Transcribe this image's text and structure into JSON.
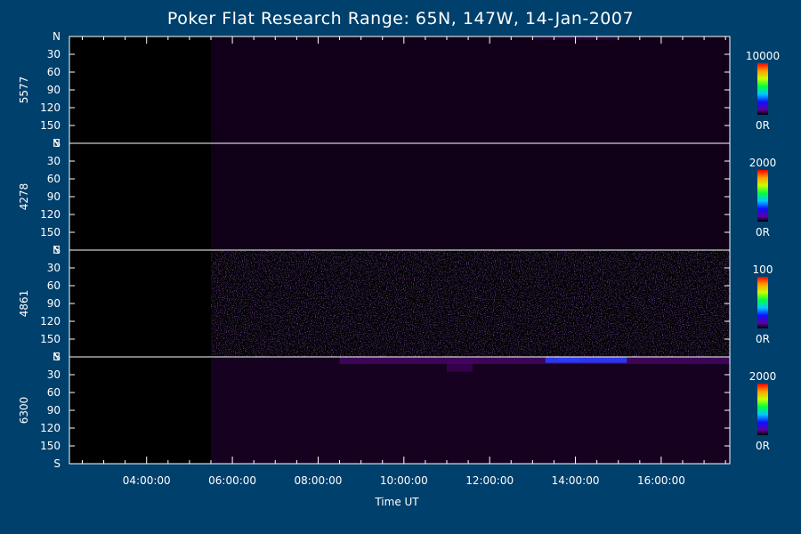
{
  "title": "Poker Flat Research Range: 65N, 147W, 14-Jan-2007",
  "chart_data": {
    "type": "heatmap",
    "title": "Poker Flat Research Range: 65N, 147W, 14-Jan-2007",
    "xlabel": "Time UT",
    "x_ticks": [
      "04:00:00",
      "06:00:00",
      "08:00:00",
      "10:00:00",
      "12:00:00",
      "14:00:00",
      "16:00:00"
    ],
    "xlim_hours": [
      2.2,
      17.6
    ],
    "y_ticks": [
      "N",
      "30",
      "60",
      "90",
      "120",
      "150",
      "S"
    ],
    "ylim_deg": [
      0,
      180
    ],
    "colorbar": "rainbow",
    "panels": [
      {
        "name": "5577",
        "cbar_max": "10000",
        "cbar_min": "0R",
        "features": [
          {
            "kind": "band",
            "t_start": 5.5,
            "t_end": 17.6,
            "deg_start": 0,
            "deg_end": 180,
            "intensity": 0.04
          },
          {
            "kind": "band",
            "t_start": 13.0,
            "t_end": 15.0,
            "deg_start": 0,
            "deg_end": 6,
            "intensity": 0.12
          }
        ]
      },
      {
        "name": "4278",
        "cbar_max": "2000",
        "cbar_min": "0R",
        "features": [
          {
            "kind": "band",
            "t_start": 5.5,
            "t_end": 17.6,
            "deg_start": 0,
            "deg_end": 180,
            "intensity": 0.02
          }
        ]
      },
      {
        "name": "4861",
        "cbar_max": "100",
        "cbar_min": "0R",
        "features": [
          {
            "kind": "noise",
            "t_start": 5.5,
            "t_end": 17.6,
            "deg_start": 0,
            "deg_end": 180,
            "intensity": 0.25
          }
        ]
      },
      {
        "name": "6300",
        "cbar_max": "2000",
        "cbar_min": "0R",
        "features": [
          {
            "kind": "band",
            "t_start": 5.5,
            "t_end": 17.6,
            "deg_start": 0,
            "deg_end": 180,
            "intensity": 0.08
          },
          {
            "kind": "band",
            "t_start": 8.5,
            "t_end": 17.6,
            "deg_start": 0,
            "deg_end": 12,
            "intensity": 0.3
          },
          {
            "kind": "band",
            "t_start": 11.0,
            "t_end": 11.6,
            "deg_start": 5,
            "deg_end": 25,
            "intensity": 0.22
          },
          {
            "kind": "band",
            "t_start": 13.3,
            "t_end": 15.2,
            "deg_start": 0,
            "deg_end": 10,
            "intensity": 0.55
          },
          {
            "kind": "band",
            "t_start": 13.6,
            "t_end": 14.1,
            "deg_start": 0,
            "deg_end": 7,
            "intensity": 0.7
          }
        ]
      }
    ]
  }
}
